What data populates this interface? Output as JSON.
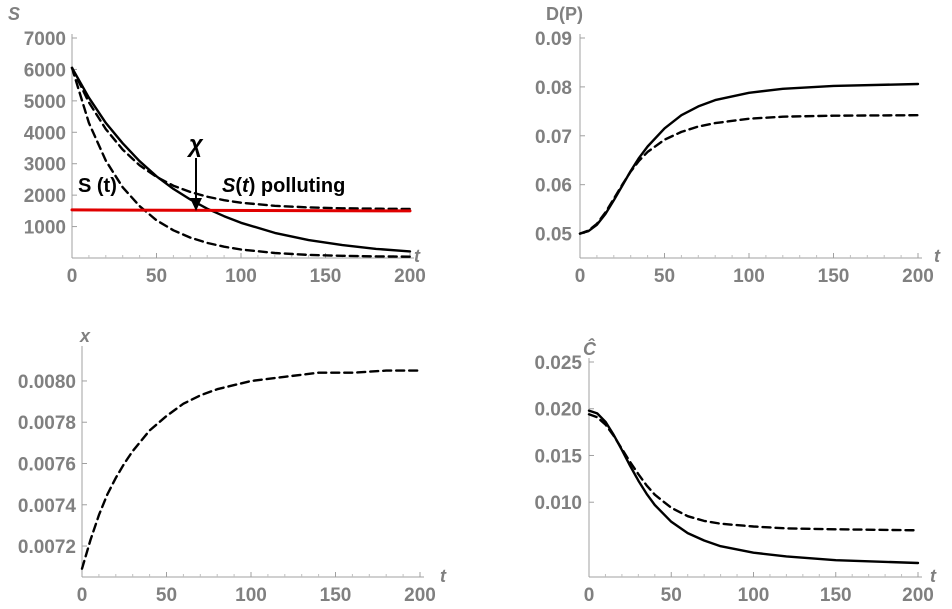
{
  "chart_data": [
    {
      "type": "line",
      "panel": "top-left",
      "xlabel": "t",
      "ylabel": "S",
      "xlim": [
        0,
        200
      ],
      "ylim": [
        0,
        7000
      ],
      "xticks": [
        0,
        50,
        100,
        150,
        200
      ],
      "yticks": [
        1000,
        2000,
        3000,
        4000,
        5000,
        6000,
        7000
      ],
      "series": [
        {
          "style": "solid",
          "color": "#000000",
          "x": [
            0,
            10,
            20,
            30,
            40,
            50,
            60,
            70,
            80,
            90,
            100,
            120,
            140,
            160,
            180,
            200
          ],
          "y": [
            6050,
            5100,
            4300,
            3650,
            3080,
            2600,
            2200,
            1860,
            1570,
            1330,
            1120,
            800,
            570,
            410,
            290,
            210
          ]
        },
        {
          "style": "dashed",
          "color": "#000000",
          "x": [
            0,
            10,
            20,
            30,
            40,
            50,
            60,
            70,
            80,
            90,
            100,
            120,
            140,
            160,
            180,
            200
          ],
          "y": [
            6050,
            4300,
            3100,
            2250,
            1650,
            1200,
            880,
            650,
            480,
            360,
            270,
            160,
            100,
            70,
            50,
            40
          ]
        },
        {
          "style": "dashed",
          "color": "#000000",
          "x": [
            0,
            10,
            20,
            30,
            40,
            50,
            60,
            70,
            80,
            90,
            100,
            120,
            140,
            160,
            180,
            200
          ],
          "y": [
            6050,
            4950,
            4100,
            3450,
            2950,
            2580,
            2300,
            2100,
            1950,
            1840,
            1760,
            1660,
            1610,
            1580,
            1570,
            1560
          ]
        },
        {
          "style": "solid",
          "color": "#e00000",
          "x": [
            0,
            200
          ],
          "y": [
            1530,
            1500
          ]
        }
      ],
      "annotations": {
        "s_t": "S (t)",
        "s_polluting_prefix": "S",
        "s_polluting_mid": "(",
        "s_polluting_t": "t",
        "s_polluting_suffix": ") polluting",
        "chi": "χ"
      }
    },
    {
      "type": "line",
      "panel": "top-right",
      "xlabel": "t",
      "ylabel": "D(P)",
      "xlim": [
        0,
        200
      ],
      "ylim": [
        0.045,
        0.09
      ],
      "xticks": [
        0,
        50,
        100,
        150,
        200
      ],
      "yticks": [
        0.05,
        0.06,
        0.07,
        0.08,
        0.09
      ],
      "ytick_labels": [
        "0.05",
        "0.06",
        "0.07",
        "0.08",
        "0.09"
      ],
      "series": [
        {
          "style": "solid",
          "color": "#000000",
          "x": [
            0,
            5,
            10,
            15,
            20,
            25,
            30,
            35,
            40,
            50,
            60,
            70,
            80,
            100,
            120,
            150,
            200
          ],
          "y": [
            0.05,
            0.0505,
            0.0518,
            0.054,
            0.0568,
            0.0598,
            0.0628,
            0.0655,
            0.0678,
            0.0715,
            0.0742,
            0.076,
            0.0773,
            0.0788,
            0.0796,
            0.0802,
            0.0806
          ]
        },
        {
          "style": "dashed",
          "color": "#000000",
          "x": [
            0,
            5,
            10,
            15,
            20,
            25,
            30,
            35,
            40,
            50,
            60,
            70,
            80,
            100,
            120,
            150,
            200
          ],
          "y": [
            0.05,
            0.0506,
            0.052,
            0.0543,
            0.0571,
            0.06,
            0.0627,
            0.0649,
            0.0667,
            0.0692,
            0.0708,
            0.0719,
            0.0726,
            0.0735,
            0.0739,
            0.0741,
            0.0742
          ]
        }
      ]
    },
    {
      "type": "line",
      "panel": "bottom-left",
      "xlabel": "t",
      "ylabel": "x",
      "xlim": [
        0,
        200
      ],
      "ylim": [
        0.00705,
        0.00815
      ],
      "xticks": [
        0,
        50,
        100,
        150,
        200
      ],
      "yticks": [
        0.0072,
        0.0074,
        0.0076,
        0.0078,
        0.008
      ],
      "ytick_labels": [
        "0.0072",
        "0.0074",
        "0.0076",
        "0.0078",
        "0.0080"
      ],
      "series": [
        {
          "style": "dashed",
          "color": "#000000",
          "x": [
            0,
            5,
            10,
            15,
            20,
            25,
            30,
            40,
            50,
            60,
            70,
            80,
            90,
            100,
            120,
            140,
            160,
            180,
            200
          ],
          "y": [
            0.00709,
            0.00723,
            0.00735,
            0.00745,
            0.00753,
            0.0076,
            0.00766,
            0.00776,
            0.00783,
            0.00789,
            0.00793,
            0.00796,
            0.00798,
            0.008,
            0.00802,
            0.00804,
            0.00804,
            0.00805,
            0.00805
          ]
        }
      ]
    },
    {
      "type": "line",
      "panel": "bottom-right",
      "xlabel": "t",
      "ylabel": "Ĉ",
      "xlim": [
        0,
        200
      ],
      "ylim": [
        0.002,
        0.025
      ],
      "xticks": [
        0,
        50,
        100,
        150,
        200
      ],
      "yticks": [
        0.01,
        0.015,
        0.02,
        0.025
      ],
      "ytick_labels": [
        "0.010",
        "0.015",
        "0.020",
        "0.025"
      ],
      "series": [
        {
          "style": "solid",
          "color": "#000000",
          "x": [
            0,
            5,
            10,
            15,
            20,
            25,
            30,
            35,
            40,
            50,
            60,
            70,
            80,
            100,
            120,
            150,
            200
          ],
          "y": [
            0.0198,
            0.0195,
            0.0186,
            0.0172,
            0.0156,
            0.0139,
            0.0123,
            0.0109,
            0.0097,
            0.0079,
            0.0067,
            0.0059,
            0.0053,
            0.0046,
            0.0042,
            0.0038,
            0.0035
          ]
        },
        {
          "style": "dashed",
          "color": "#000000",
          "x": [
            0,
            5,
            10,
            15,
            20,
            25,
            30,
            35,
            40,
            50,
            60,
            70,
            80,
            100,
            120,
            150,
            200
          ],
          "y": [
            0.0194,
            0.0191,
            0.0183,
            0.0171,
            0.0157,
            0.0143,
            0.013,
            0.0118,
            0.0108,
            0.0094,
            0.0085,
            0.008,
            0.0077,
            0.0074,
            0.0072,
            0.0071,
            0.007
          ]
        }
      ]
    }
  ]
}
